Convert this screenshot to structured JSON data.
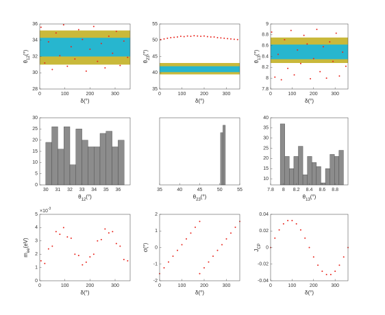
{
  "chart_data": [
    {
      "type": "scatter",
      "xlabel": {
        "main": "δ",
        "unit": "(°)"
      },
      "ylabel": {
        "main": "θ",
        "sub": "12",
        "unit": "(°)"
      },
      "xlim": [
        0,
        360
      ],
      "xticks": [
        0,
        100,
        200,
        300
      ],
      "ylim": [
        28,
        36
      ],
      "yticks": [
        28,
        30,
        32,
        34,
        36
      ],
      "color": "#e8241c",
      "bands": [
        {
          "range": [
            31,
            35.2
          ],
          "color": "#c9b93a"
        },
        {
          "range": [
            32,
            34.3
          ],
          "color": "#27b6cf"
        }
      ],
      "x": [
        5,
        20,
        35,
        50,
        65,
        80,
        95,
        110,
        125,
        140,
        155,
        170,
        185,
        200,
        215,
        230,
        245,
        260,
        275,
        290,
        305,
        320,
        335,
        350
      ],
      "values": [
        35.6,
        31.2,
        33.8,
        30.4,
        34.9,
        32.1,
        35.9,
        30.8,
        33.2,
        31.7,
        35.3,
        34.1,
        30.2,
        32.9,
        35.7,
        31.4,
        33.6,
        30.6,
        34.5,
        32.4,
        35.1,
        30.9,
        33.9,
        31.9
      ]
    },
    {
      "type": "scatter",
      "xlabel": {
        "main": "δ",
        "unit": "(°)"
      },
      "ylabel": {
        "main": "θ",
        "sub": "23",
        "unit": "(°)"
      },
      "xlim": [
        0,
        360
      ],
      "xticks": [
        0,
        100,
        200,
        300
      ],
      "ylim": [
        35,
        55
      ],
      "yticks": [
        35,
        40,
        45,
        50,
        55
      ],
      "color": "#e8241c",
      "bands": [
        {
          "range": [
            39.5,
            43
          ],
          "color": "#c9b93a"
        },
        {
          "range": [
            40.2,
            42
          ],
          "color": "#27b6cf"
        }
      ],
      "x": [
        5,
        20,
        35,
        50,
        65,
        80,
        95,
        110,
        125,
        140,
        155,
        170,
        185,
        200,
        215,
        230,
        245,
        260,
        275,
        290,
        305,
        320,
        335,
        350
      ],
      "values": [
        50.2,
        50.4,
        50.6,
        50.8,
        50.9,
        51.0,
        51.2,
        51.1,
        51.3,
        51.2,
        51.4,
        51.3,
        51.2,
        51.3,
        51.1,
        51.0,
        51.0,
        50.8,
        50.7,
        50.6,
        50.5,
        50.4,
        50.3,
        50.2
      ]
    },
    {
      "type": "scatter",
      "xlabel": {
        "main": "δ",
        "unit": "(°)"
      },
      "ylabel": {
        "main": "θ",
        "sub": "13",
        "unit": "(°)"
      },
      "xlim": [
        0,
        360
      ],
      "xticks": [
        0,
        100,
        200,
        300
      ],
      "ylim": [
        7.8,
        9
      ],
      "yticks": [
        7.8,
        8,
        8.2,
        8.4,
        8.6,
        8.8,
        9
      ],
      "color": "#e8241c",
      "bands": [
        {
          "range": [
            8.28,
            8.75
          ],
          "color": "#c9b93a"
        },
        {
          "range": [
            8.35,
            8.62
          ],
          "color": "#27b6cf"
        }
      ],
      "x": [
        5,
        20,
        35,
        50,
        65,
        80,
        95,
        110,
        125,
        140,
        155,
        170,
        185,
        200,
        215,
        230,
        245,
        260,
        275,
        290,
        305,
        320,
        335,
        350
      ],
      "values": [
        8.85,
        8.02,
        8.44,
        7.97,
        8.71,
        8.18,
        8.88,
        8.06,
        8.52,
        8.27,
        8.79,
        8.63,
        7.99,
        8.36,
        8.9,
        8.12,
        8.58,
        8.0,
        8.67,
        8.31,
        8.83,
        8.04,
        8.48,
        8.22
      ]
    },
    {
      "type": "histogram",
      "xlabel": {
        "main": "θ",
        "sub": "12",
        "unit": "(°)"
      },
      "color": "#8c8c8c",
      "xlim": [
        29.5,
        37
      ],
      "xticks": [
        30,
        31,
        32,
        33,
        34,
        35,
        36
      ],
      "ylim": [
        0,
        30
      ],
      "yticks": [
        0,
        5,
        10,
        15,
        20,
        25,
        30
      ],
      "bins": [
        30,
        30.5,
        31,
        31.5,
        32,
        32.5,
        33,
        33.5,
        34,
        34.5,
        35,
        35.5,
        36,
        36.5
      ],
      "values": [
        19,
        26,
        16,
        26,
        9,
        25,
        20,
        17,
        17,
        23,
        24,
        17,
        20
      ]
    },
    {
      "type": "histogram",
      "xlabel": {
        "main": "θ",
        "sub": "23",
        "unit": "(°)"
      },
      "color": "#8c8c8c",
      "xlim": [
        35,
        55
      ],
      "xticks": [
        35,
        40,
        45,
        50,
        55
      ],
      "ylim": [
        0,
        180
      ],
      "bins": [
        50.2,
        50.8,
        51.4
      ],
      "values": [
        140,
        160
      ]
    },
    {
      "type": "histogram",
      "xlabel": {
        "main": "θ",
        "sub": "13",
        "unit": "(°)"
      },
      "color": "#8c8c8c",
      "xlim": [
        7.8,
        9
      ],
      "xticks": [
        7.8,
        8,
        8.2,
        8.4,
        8.6,
        8.8
      ],
      "ylim": [
        7,
        40
      ],
      "yticks": [
        10,
        15,
        20,
        25,
        30,
        35,
        40
      ],
      "bins": [
        7.95,
        8.02,
        8.09,
        8.16,
        8.23,
        8.3,
        8.37,
        8.44,
        8.51,
        8.58,
        8.65,
        8.72,
        8.79,
        8.86,
        8.93
      ],
      "values": [
        37,
        21,
        15,
        21,
        26,
        12,
        21,
        18,
        16,
        8,
        15,
        22,
        21,
        24
      ]
    },
    {
      "type": "scatter",
      "xlabel": {
        "main": "δ",
        "unit": "(°)"
      },
      "ylabel": {
        "main": "m",
        "sub": "ee",
        "unit": "(eV)"
      },
      "exponent": {
        "base": "×10",
        "power": "-3"
      },
      "xlim": [
        0,
        360
      ],
      "xticks": [
        0,
        100,
        200,
        300
      ],
      "ylim": [
        0,
        0.005
      ],
      "yticks": [
        0,
        {
          "value": 0.001,
          "label": "1"
        },
        {
          "value": 0.002,
          "label": "2"
        },
        {
          "value": 0.003,
          "label": "3"
        },
        {
          "value": 0.004,
          "label": "4"
        },
        {
          "value": 0.005,
          "label": "5"
        }
      ],
      "color": "#e8241c",
      "x": [
        5,
        20,
        35,
        50,
        65,
        80,
        95,
        110,
        125,
        140,
        155,
        170,
        185,
        200,
        215,
        230,
        245,
        260,
        275,
        290,
        305,
        320,
        335,
        350
      ],
      "values": [
        0.0015,
        0.0013,
        0.0024,
        0.0026,
        0.0037,
        0.0035,
        0.004,
        0.0033,
        0.0032,
        0.002,
        0.0019,
        0.0012,
        0.0014,
        0.0018,
        0.002,
        0.003,
        0.0031,
        0.0039,
        0.0036,
        0.0037,
        0.0028,
        0.0026,
        0.0016,
        0.0015
      ]
    },
    {
      "type": "scatter",
      "xlabel": {
        "main": "δ",
        "unit": "(°)"
      },
      "ylabel": {
        "main": "σ",
        "unit": "(°)"
      },
      "xlim": [
        0,
        360
      ],
      "xticks": [
        0,
        100,
        200,
        300
      ],
      "ylim": [
        -2,
        2
      ],
      "yticks": [
        -2,
        -1,
        0,
        1,
        2
      ],
      "color": "#e8241c",
      "x": [
        0,
        20,
        40,
        60,
        80,
        100,
        120,
        140,
        160,
        180,
        180,
        200,
        220,
        240,
        260,
        280,
        300,
        320,
        340,
        360
      ],
      "values": [
        -1.57,
        -1.22,
        -0.87,
        -0.52,
        -0.17,
        0.17,
        0.52,
        0.87,
        1.22,
        1.57,
        -1.57,
        -1.22,
        -0.87,
        -0.52,
        -0.17,
        0.17,
        0.52,
        0.87,
        1.22,
        1.57
      ]
    },
    {
      "type": "scatter",
      "xlabel": {
        "main": "δ",
        "unit": "(°)"
      },
      "ylabel": {
        "main": "J",
        "sub": "CP"
      },
      "xlim": [
        0,
        360
      ],
      "xticks": [
        0,
        100,
        200,
        300
      ],
      "ylim": [
        -0.04,
        0.04
      ],
      "yticks": [
        -0.04,
        -0.02,
        0,
        0.02,
        0.04
      ],
      "color": "#e8241c",
      "x": [
        0,
        20,
        40,
        60,
        80,
        100,
        120,
        140,
        160,
        180,
        200,
        220,
        240,
        260,
        280,
        300,
        320,
        340,
        360
      ],
      "values": [
        0,
        0.0113,
        0.0212,
        0.0286,
        0.0325,
        0.0325,
        0.0286,
        0.0212,
        0.0113,
        0,
        -0.0113,
        -0.0212,
        -0.0286,
        -0.0325,
        -0.0325,
        -0.0286,
        -0.0212,
        -0.0113,
        0
      ]
    }
  ]
}
